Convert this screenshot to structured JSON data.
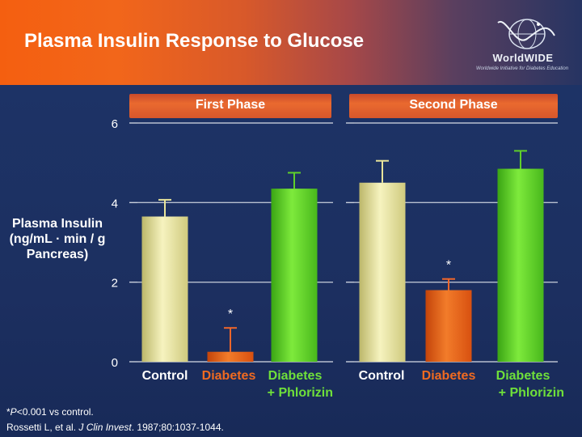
{
  "slide": {
    "title": "Plasma Insulin Response to Glucose",
    "logo_name": "WorldWIDE",
    "logo_tagline": "Worldwide Initiative for Diabetes Education",
    "footnote_marker": "*",
    "footnote_p": "P",
    "footnote_rest": "<0.001 vs control.",
    "citation_authors": "Rossetti L, et al. ",
    "citation_journal": "J Clin Invest",
    "citation_rest": ". 1987;80:1037-1044."
  },
  "colors": {
    "control": "#e8e49a",
    "diabetes": "#e85a10",
    "phlorizin": "#5fd02a",
    "header_orange": "#f45f10",
    "background": "#1c2f63"
  },
  "chart_data": {
    "type": "bar",
    "ylabel": "Plasma Insulin (ng/mL · min / g Pancreas)",
    "ylim": [
      0,
      6
    ],
    "yticks": [
      0,
      2,
      4,
      6
    ],
    "categories": [
      "Control",
      "Diabetes",
      "Diabetes + Phlorizin"
    ],
    "panels": [
      {
        "name": "First Phase",
        "categories": [
          "Control",
          "Diabetes",
          "Diabetes\n+ Phlorizin"
        ],
        "values": [
          3.65,
          0.25,
          4.35
        ],
        "errors": [
          0.42,
          0.6,
          0.4
        ],
        "significance": [
          "",
          "*",
          ""
        ]
      },
      {
        "name": "Second Phase",
        "categories": [
          "Control",
          "Diabetes",
          "Diabetes\n+ Phlorizin"
        ],
        "values": [
          4.5,
          1.8,
          4.85
        ],
        "errors": [
          0.55,
          0.28,
          0.45
        ],
        "significance": [
          "",
          "*",
          ""
        ]
      }
    ]
  }
}
